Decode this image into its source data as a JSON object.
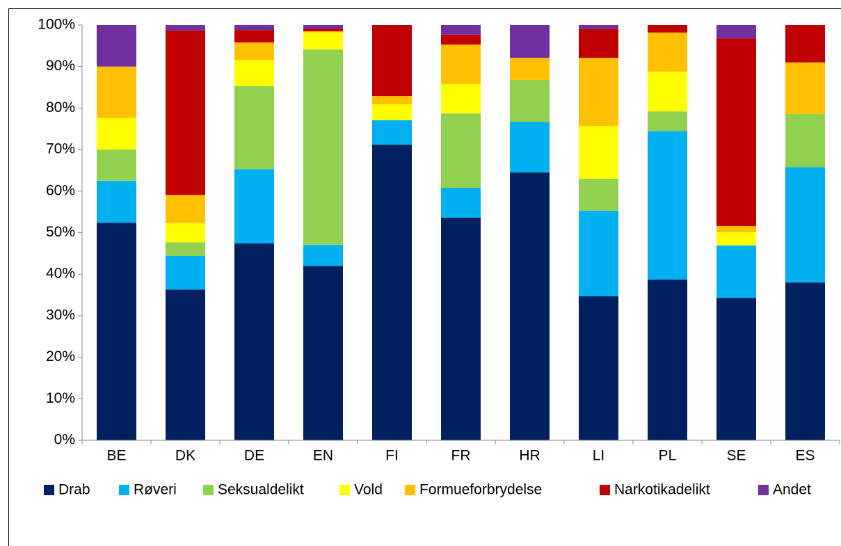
{
  "chart_data": {
    "type": "stacked_bar",
    "categories": [
      "BE",
      "DK",
      "DE",
      "EN",
      "FI",
      "FR",
      "HR",
      "LI",
      "PL",
      "SE",
      "ES"
    ],
    "series": [
      {
        "name": "Drab",
        "color": "#002060",
        "values": [
          52.4,
          36.3,
          47.4,
          42.0,
          71.2,
          53.6,
          64.5,
          34.7,
          38.7,
          34.3,
          38.0
        ]
      },
      {
        "name": "Røveri",
        "color": "#00b0f0",
        "values": [
          10.1,
          8.1,
          17.9,
          5.1,
          5.9,
          7.2,
          12.2,
          20.6,
          35.8,
          12.6,
          27.8
        ]
      },
      {
        "name": "Seksualdelikt",
        "color": "#92d050",
        "values": [
          7.5,
          3.3,
          20.0,
          47.0,
          0,
          17.9,
          10.1,
          7.7,
          4.7,
          0,
          12.8
        ]
      },
      {
        "name": "Vold",
        "color": "#ffff00",
        "values": [
          7.6,
          4.6,
          6.3,
          4.1,
          3.8,
          7.1,
          0,
          12.7,
          9.6,
          3.2,
          0
        ]
      },
      {
        "name": "Formueforbrydelse",
        "color": "#ffc000",
        "values": [
          12.4,
          6.8,
          4.2,
          0.3,
          2.0,
          9.5,
          5.3,
          16.4,
          9.4,
          1.5,
          12.4
        ]
      },
      {
        "name": "Narkotikadelikt",
        "color": "#c00000",
        "values": [
          0,
          39.6,
          3.0,
          0.7,
          17.1,
          2.4,
          0,
          6.9,
          1.8,
          45.2,
          9.0
        ]
      },
      {
        "name": "Andet",
        "color": "#7030a0",
        "values": [
          10.0,
          1.3,
          1.2,
          0.8,
          0,
          2.3,
          7.9,
          1.0,
          0,
          3.2,
          0
        ]
      }
    ],
    "ylim": [
      0,
      100
    ],
    "yticks": [
      {
        "value": 0,
        "label": "0%"
      },
      {
        "value": 10,
        "label": "10%"
      },
      {
        "value": 20,
        "label": "20%"
      },
      {
        "value": 30,
        "label": "30%"
      },
      {
        "value": 40,
        "label": "40%"
      },
      {
        "value": 50,
        "label": "50%"
      },
      {
        "value": 60,
        "label": "60%"
      },
      {
        "value": 70,
        "label": "70%"
      },
      {
        "value": 80,
        "label": "80%"
      },
      {
        "value": 90,
        "label": "90%"
      },
      {
        "value": 100,
        "label": "100%"
      }
    ],
    "legend": "bottom"
  }
}
